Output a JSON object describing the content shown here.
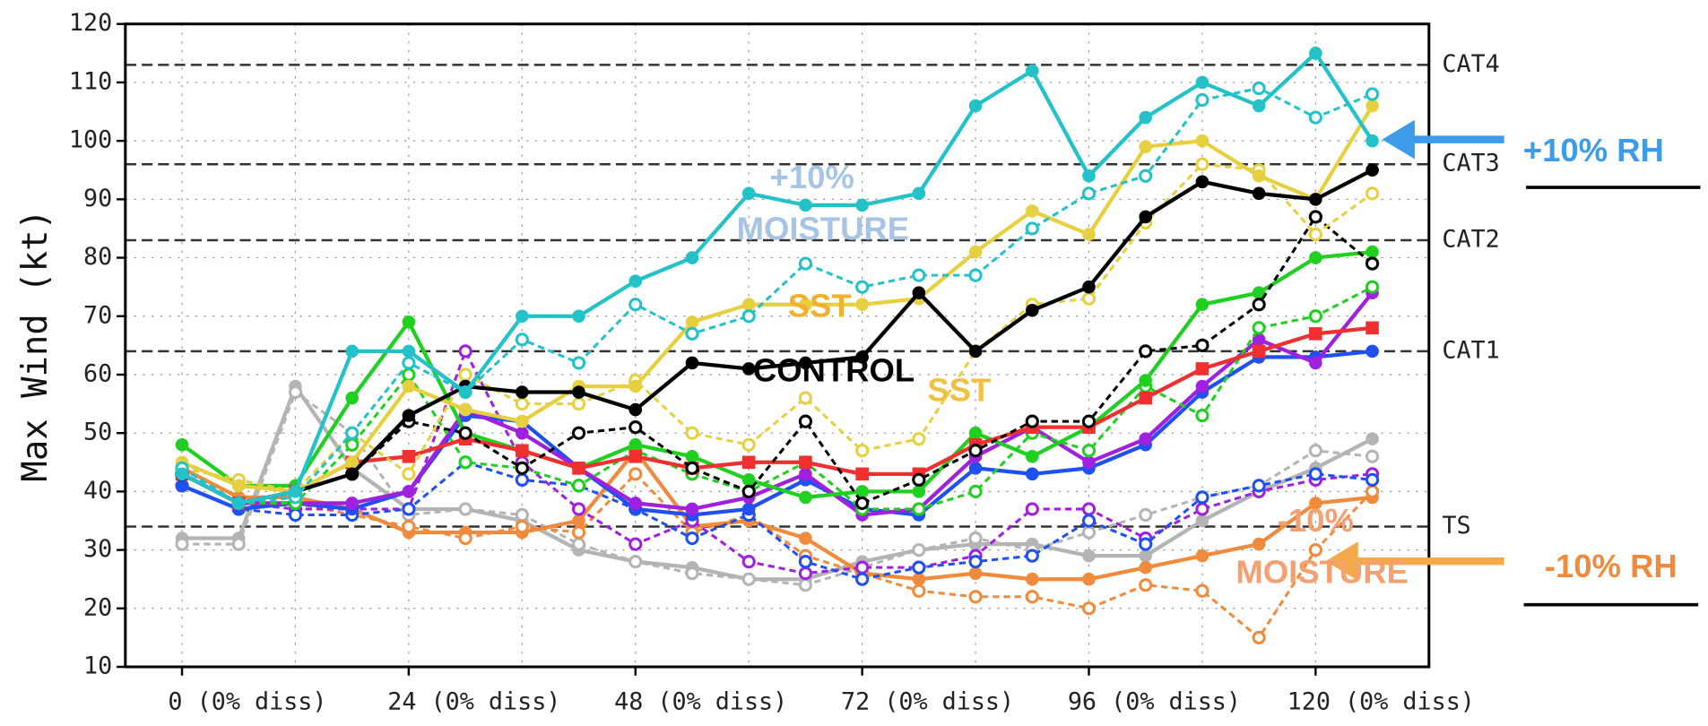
{
  "chart_data": {
    "type": "line",
    "ylabel": "Max Wind (kt)",
    "x": [
      0,
      6,
      12,
      18,
      24,
      30,
      36,
      42,
      48,
      54,
      60,
      66,
      72,
      78,
      84,
      90,
      96,
      102,
      108,
      114,
      120,
      126
    ],
    "xlim": [
      -6,
      132
    ],
    "xticks": [
      {
        "value": 0,
        "label": "0 (0% diss)"
      },
      {
        "value": 24,
        "label": "24 (0% diss)"
      },
      {
        "value": 48,
        "label": "48 (0% diss)"
      },
      {
        "value": 72,
        "label": "72 (0% diss)"
      },
      {
        "value": 96,
        "label": "96 (0% diss)"
      },
      {
        "value": 120,
        "label": "120 (0% diss)"
      }
    ],
    "ylim": [
      10,
      120
    ],
    "yticks": [
      10,
      20,
      30,
      40,
      50,
      60,
      70,
      80,
      90,
      100,
      110,
      120
    ],
    "grid": true,
    "ref_lines": [
      {
        "label": "CAT4",
        "value": 113
      },
      {
        "label": "CAT3",
        "value": 96
      },
      {
        "label": "CAT2",
        "value": 83
      },
      {
        "label": "CAT1",
        "value": 64
      },
      {
        "label": "TS",
        "value": 34
      }
    ],
    "series": [
      {
        "color": "#b4b4b4",
        "dash": false,
        "marker": "filled",
        "values": [
          32,
          32,
          58,
          44,
          37,
          37,
          35,
          30,
          28,
          27,
          25,
          25,
          28,
          30,
          31,
          31,
          29,
          29,
          35,
          40,
          44,
          49
        ]
      },
      {
        "color": "#b4b4b4",
        "dash": true,
        "marker": "open",
        "values": [
          31,
          31,
          57,
          50,
          36,
          37,
          36,
          31,
          28,
          26,
          25,
          24,
          27,
          30,
          32,
          30,
          33,
          36,
          39,
          41,
          47,
          46
        ]
      },
      {
        "color": "#f08a3c",
        "dash": false,
        "marker": "filled",
        "values": [
          44,
          39,
          39,
          37,
          33,
          33,
          33,
          35,
          47,
          34,
          35,
          32,
          26,
          25,
          26,
          25,
          25,
          27,
          29,
          31,
          38,
          39
        ]
      },
      {
        "color": "#f08a3c",
        "dash": true,
        "marker": "open",
        "values": [
          43,
          38,
          38,
          36,
          34,
          32,
          34,
          33,
          43,
          33,
          36,
          29,
          26,
          23,
          22,
          22,
          20,
          24,
          23,
          15,
          30,
          40
        ]
      },
      {
        "color": "#a020e0",
        "dash": true,
        "marker": "open",
        "values": [
          43,
          38,
          37,
          37,
          37,
          64,
          45,
          37,
          31,
          35,
          28,
          26,
          27,
          27,
          29,
          37,
          37,
          32,
          37,
          40,
          42,
          43
        ]
      },
      {
        "color": "#2050f0",
        "dash": true,
        "marker": "open",
        "values": [
          41,
          37,
          36,
          36,
          37,
          45,
          42,
          41,
          37,
          32,
          36,
          28,
          25,
          27,
          28,
          29,
          35,
          31,
          39,
          41,
          43,
          42
        ]
      },
      {
        "color": "#2050f0",
        "dash": false,
        "marker": "filled",
        "values": [
          41,
          37,
          38,
          37,
          40,
          53,
          52,
          44,
          37,
          36,
          37,
          42,
          37,
          36,
          44,
          43,
          44,
          48,
          57,
          63,
          63,
          64
        ]
      },
      {
        "color": "#a020e0",
        "dash": false,
        "marker": "filled",
        "values": [
          43,
          38,
          38,
          38,
          40,
          54,
          50,
          44,
          38,
          37,
          39,
          43,
          36,
          37,
          46,
          51,
          45,
          49,
          58,
          66,
          62,
          74
        ]
      },
      {
        "color": "#20d020",
        "dash": true,
        "marker": "open",
        "values": [
          44,
          38,
          38,
          48,
          60,
          45,
          44,
          41,
          47,
          43,
          40,
          45,
          37,
          37,
          40,
          50,
          47,
          58,
          53,
          68,
          70,
          75
        ]
      },
      {
        "color": "#20d020",
        "dash": false,
        "marker": "filled",
        "values": [
          48,
          41,
          41,
          56,
          69,
          50,
          47,
          44,
          48,
          46,
          42,
          39,
          40,
          40,
          50,
          46,
          51,
          59,
          72,
          74,
          80,
          81
        ]
      },
      {
        "color": "#f03030",
        "dash": false,
        "marker": "square",
        "values": [
          43,
          38,
          40,
          45,
          46,
          49,
          47,
          44,
          46,
          44,
          45,
          45,
          43,
          43,
          48,
          51,
          51,
          56,
          61,
          64,
          67,
          68
        ]
      },
      {
        "color": "#000000",
        "dash": true,
        "marker": "open",
        "values": [
          43,
          38,
          40,
          43,
          52,
          50,
          44,
          50,
          51,
          44,
          40,
          52,
          38,
          42,
          47,
          52,
          52,
          64,
          65,
          72,
          87,
          79
        ]
      },
      {
        "color": "#e6d040",
        "dash": true,
        "marker": "open",
        "values": [
          44,
          42,
          40,
          50,
          43,
          60,
          55,
          55,
          59,
          50,
          48,
          56,
          47,
          49,
          64,
          72,
          73,
          86,
          96,
          95,
          84,
          91
        ]
      },
      {
        "color": "#e6d040",
        "dash": false,
        "marker": "filled",
        "values": [
          45,
          41,
          40,
          45,
          58,
          54,
          52,
          58,
          58,
          69,
          72,
          72,
          72,
          73,
          81,
          88,
          84,
          99,
          100,
          94,
          90,
          106
        ]
      },
      {
        "color": "#000000",
        "dash": false,
        "marker": "filled",
        "values": [
          43,
          38,
          40,
          43,
          53,
          58,
          57,
          57,
          54,
          62,
          61,
          62,
          63,
          74,
          64,
          71,
          75,
          87,
          93,
          91,
          90,
          95
        ]
      },
      {
        "color": "#22c2c8",
        "dash": true,
        "marker": "open",
        "values": [
          44,
          38,
          39,
          50,
          62,
          57,
          66,
          62,
          72,
          67,
          70,
          79,
          75,
          77,
          77,
          85,
          91,
          94,
          107,
          109,
          104,
          108
        ]
      },
      {
        "color": "#22c2c8",
        "dash": false,
        "marker": "filled",
        "values": [
          43,
          38,
          40,
          64,
          64,
          57,
          70,
          70,
          76,
          80,
          91,
          89,
          89,
          91,
          106,
          112,
          94,
          104,
          110,
          106,
          115,
          100
        ]
      }
    ],
    "annotations": [
      "+10%",
      "MOISTURE",
      "SST",
      "CONTROL",
      "SST",
      "-10%",
      "MOISTURE"
    ],
    "callouts": [
      "+10% RH",
      "-10% RH"
    ]
  }
}
